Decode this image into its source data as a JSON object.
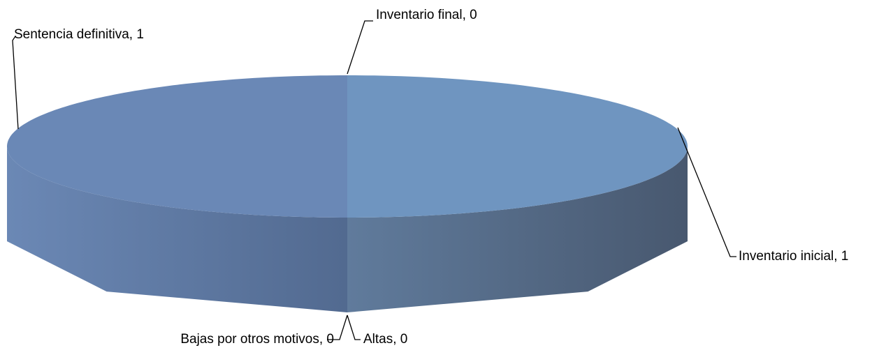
{
  "chart_data": {
    "type": "pie3d",
    "categories": [
      "Inventario inicial",
      "Altas",
      "Bajas por otros motivos",
      "Sentencia definitiva",
      "Inventario final"
    ],
    "values": [
      1,
      0,
      0,
      1,
      0
    ],
    "value_labels": [
      "Inventario inicial, 1",
      "Altas, 0",
      "Bajas por otros motivos, 0",
      "Sentencia definitiva, 1",
      "Inventario final, 0"
    ],
    "colors": [
      "#6f95c0",
      "#6f95c0",
      "#6f95c0",
      "#6a88b6",
      "#6a88b6"
    ]
  }
}
